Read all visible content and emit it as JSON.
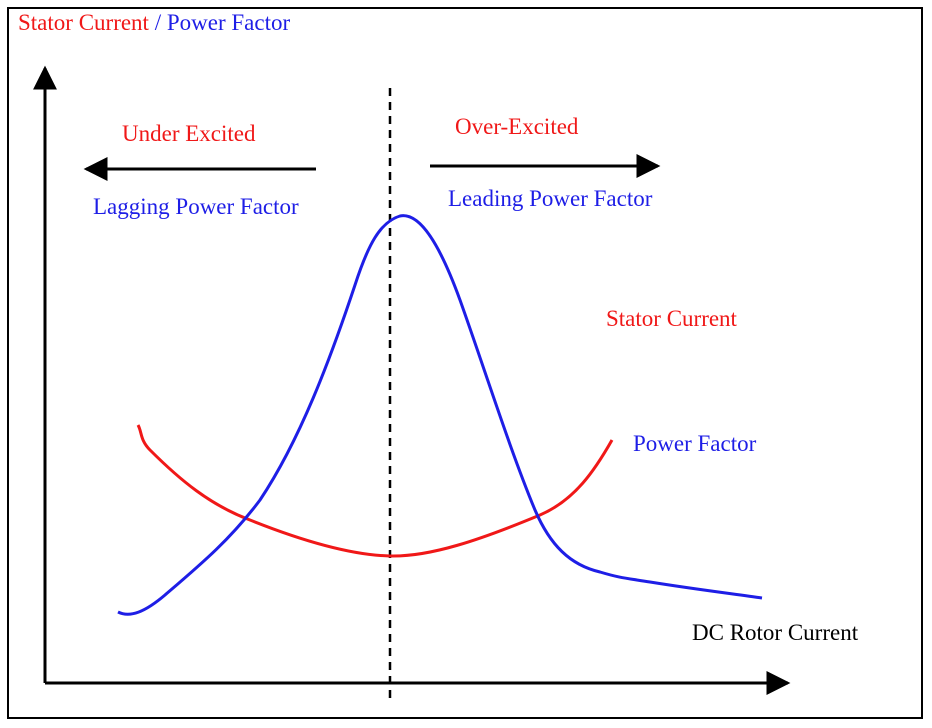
{
  "title": {
    "part1": "Stator Current",
    "part2": "/ Power Factor"
  },
  "labels": {
    "under_excited": "Under Excited",
    "lagging": "Lagging Power Factor",
    "over_excited": "Over-Excited",
    "leading": "Leading Power Factor",
    "stator_current": "Stator Current",
    "power_factor": "Power Factor",
    "x_axis": "DC Rotor Current"
  }
}
